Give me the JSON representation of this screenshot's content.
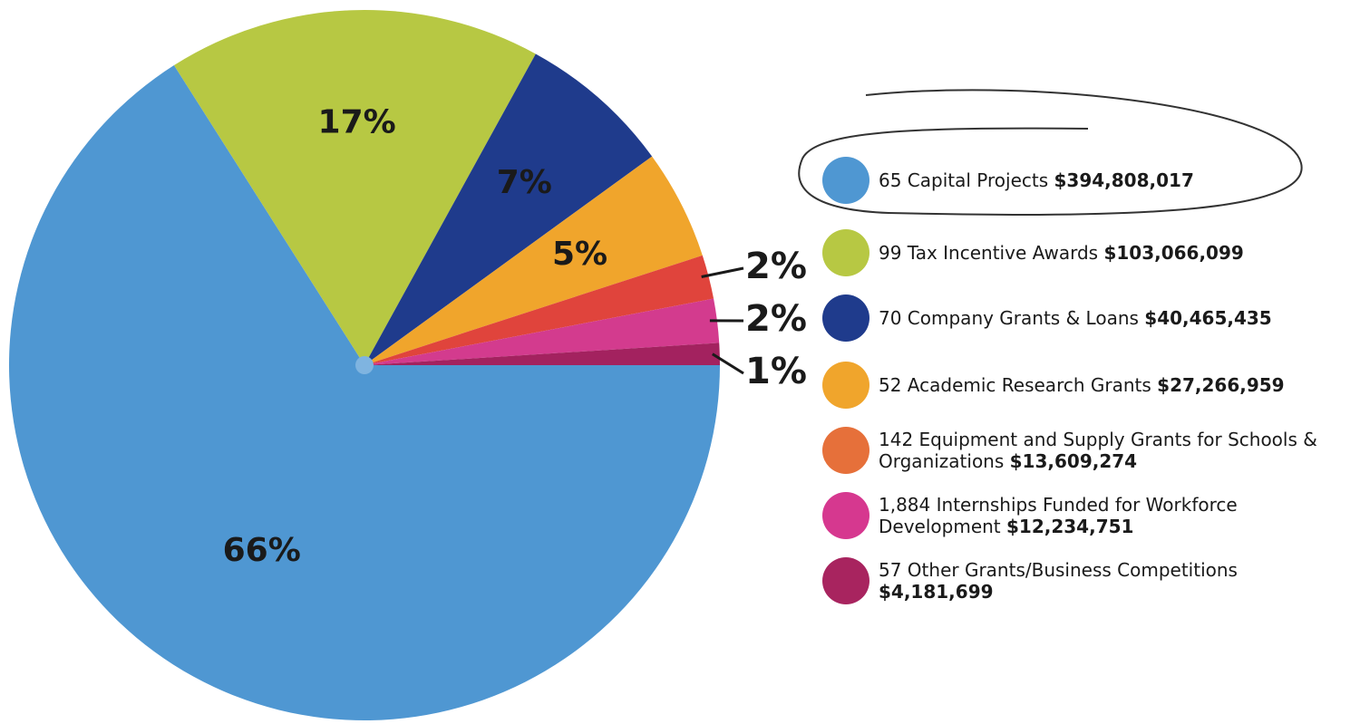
{
  "chart_data": {
    "type": "pie",
    "categories": [
      "65 Capital Projects",
      "99 Tax Incentive Awards",
      "70 Company Grants & Loans",
      "52 Academic Research Grants",
      "142 Equipment and Supply Grants for Schools & Organizations",
      "1,884 Internships Funded for Workforce Development",
      "57 Other Grants/Business Competitions"
    ],
    "amounts": [
      "$394,808,017",
      "$103,066,099",
      "$40,465,435",
      "$27,266,959",
      "$13,609,274",
      "$12,234,751",
      "$4,181,699"
    ],
    "values": [
      66,
      17,
      7,
      5,
      2,
      2,
      1
    ],
    "value_labels": [
      "66%",
      "17%",
      "7%",
      "5%",
      "2%",
      "2%",
      "1%"
    ],
    "colors": [
      "#4f97d2",
      "#b7c843",
      "#1f3b8c",
      "#f0a52c",
      "#e0443c",
      "#d33b8e",
      "#a3225f"
    ],
    "legend_colors": [
      "#4f97d2",
      "#b7c843",
      "#1f3b8c",
      "#f0a52c",
      "#e6703a",
      "#d6388f",
      "#a8245f"
    ]
  }
}
